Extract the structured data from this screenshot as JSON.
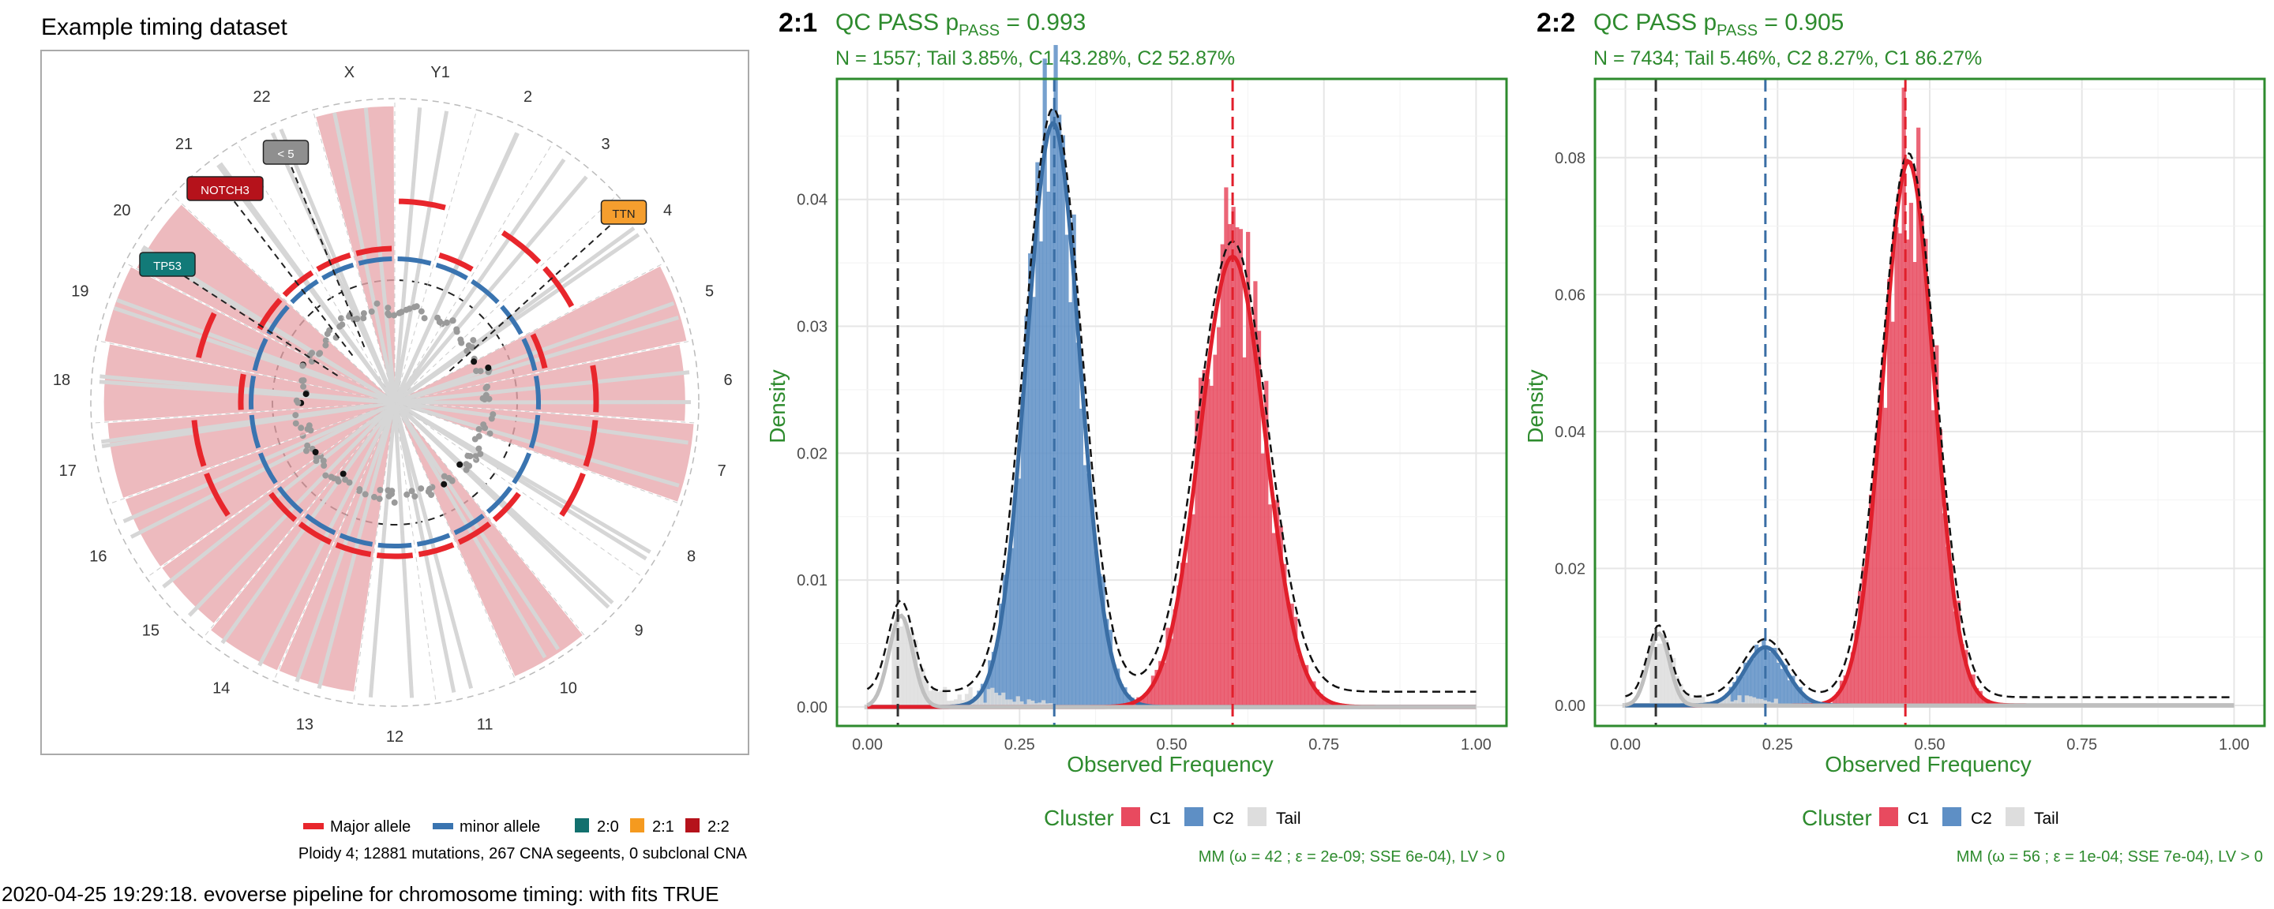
{
  "footer": "2020-04-25 19:29:18. evoverse pipeline for chromosome timing: with fits TRUE",
  "circos": {
    "title": "Example timing dataset",
    "chromosomes": [
      "Y1",
      "2",
      "3",
      "4",
      "5",
      "6",
      "7",
      "8",
      "9",
      "10",
      "11",
      "12",
      "13",
      "14",
      "15",
      "16",
      "17",
      "18",
      "19",
      "20",
      "21",
      "22",
      "X"
    ],
    "gene_labels": [
      {
        "text": "TTN",
        "color": "#F59E2E"
      },
      {
        "text": "NOTCH3",
        "color": "#B5121B"
      },
      {
        "text": "TP53",
        "color": "#127A78"
      },
      {
        "text": "< 5",
        "color": "#8F8F8F"
      }
    ],
    "legend": {
      "major_label": "Major allele",
      "minor_label": "minor allele",
      "major_color": "#E8262C",
      "minor_color": "#3A74B0",
      "karyotypes": [
        {
          "label": "2:0",
          "color": "#12706E"
        },
        {
          "label": "2:1",
          "color": "#F59A1F"
        },
        {
          "label": "2:2",
          "color": "#B5121B"
        }
      ]
    },
    "summary": "Ploidy 4; 12881 mutations, 267 CNA segeents, 0 subclonal CNA"
  },
  "colors": {
    "C1": "#E84A5F",
    "C2": "#5E8FC5",
    "Tail": "#DDDDDD",
    "qc": "#2E8B2E"
  },
  "chart_data": [
    {
      "type": "bar",
      "panel": "2:1",
      "title": "2:1",
      "qc_text": "QC  PASS p",
      "qc_sub": "PASS",
      "qc_value": " = 0.993",
      "subtitle": "N = 1557; Tail 3.85%, C1 43.28%, C2 52.87%",
      "xlabel": "Observed Frequency",
      "ylabel": "Density",
      "xlim": [
        -0.05,
        1.05
      ],
      "ylim": [
        -0.0015,
        0.0495
      ],
      "x_ticks": [
        "0.00",
        "0.25",
        "0.50",
        "0.75",
        "1.00"
      ],
      "y_ticks": [
        "0.00",
        "0.01",
        "0.02",
        "0.03",
        "0.04"
      ],
      "y_tick_values": [
        0,
        0.01,
        0.02,
        0.03,
        0.04
      ],
      "vlines": [
        {
          "x": 0.05,
          "cluster": "Tail"
        },
        {
          "x": 0.307,
          "cluster": "C2"
        },
        {
          "x": 0.6,
          "cluster": "C1"
        }
      ],
      "series": [
        {
          "name": "C2",
          "peak_x": 0.305,
          "peak_y": 0.046,
          "spread": 0.045,
          "range": [
            0.15,
            0.47
          ]
        },
        {
          "name": "C1",
          "peak_x": 0.6,
          "peak_y": 0.0355,
          "spread": 0.055,
          "range": [
            0.43,
            0.78
          ]
        },
        {
          "name": "Tail",
          "peak_x": 0.055,
          "peak_y": 0.0072,
          "spread": 0.02,
          "range": [
            0.04,
            0.3
          ]
        }
      ],
      "legend_title": "Cluster",
      "legend": [
        "C1",
        "C2",
        "Tail"
      ],
      "footnote": "MM (ω = 42 ; ε = 2e-09; SSE 6e-04), LV > 0"
    },
    {
      "type": "bar",
      "panel": "2:2",
      "title": "2:2",
      "qc_text": "QC  PASS p",
      "qc_sub": "PASS",
      "qc_value": " = 0.905",
      "subtitle": "N = 7434; Tail 5.46%, C2 8.27%, C1 86.27%",
      "xlabel": "Observed Frequency",
      "ylabel": "Density",
      "xlim": [
        -0.05,
        1.05
      ],
      "ylim": [
        -0.003,
        0.0915
      ],
      "x_ticks": [
        "0.00",
        "0.25",
        "0.50",
        "0.75",
        "1.00"
      ],
      "y_ticks": [
        "0.00",
        "0.02",
        "0.04",
        "0.06",
        "0.08"
      ],
      "y_tick_values": [
        0,
        0.02,
        0.04,
        0.06,
        0.08
      ],
      "vlines": [
        {
          "x": 0.05,
          "cluster": "Tail"
        },
        {
          "x": 0.23,
          "cluster": "C2"
        },
        {
          "x": 0.46,
          "cluster": "C1"
        }
      ],
      "series": [
        {
          "name": "C1",
          "peak_x": 0.465,
          "peak_y": 0.0795,
          "spread": 0.043,
          "range": [
            0.34,
            0.6
          ]
        },
        {
          "name": "C2",
          "peak_x": 0.23,
          "peak_y": 0.0085,
          "spread": 0.035,
          "range": [
            0.14,
            0.32
          ]
        },
        {
          "name": "Tail",
          "peak_x": 0.055,
          "peak_y": 0.0105,
          "spread": 0.018,
          "range": [
            0.04,
            0.25
          ]
        }
      ],
      "legend_title": "Cluster",
      "legend": [
        "C1",
        "C2",
        "Tail"
      ],
      "footnote": "MM (ω = 56 ; ε = 1e-04; SSE 7e-04), LV > 0"
    }
  ]
}
